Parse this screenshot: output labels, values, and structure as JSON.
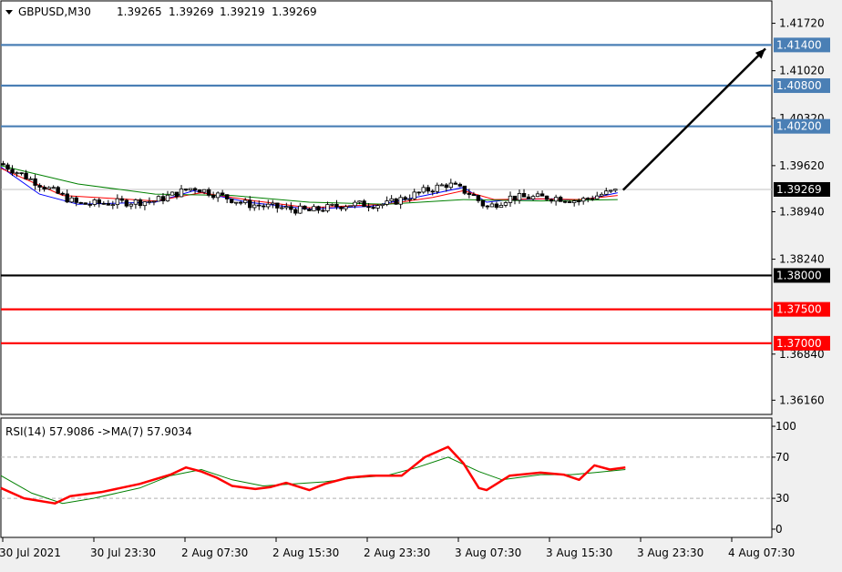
{
  "chart_data": {
    "type": "candlestick",
    "symbol_header": "GBPUSD,M30",
    "ohlc_header": [
      "1.39265",
      "1.39269",
      "1.39219",
      "1.39269"
    ],
    "price_ticks": [
      "1.41720",
      "1.41020",
      "1.40320",
      "1.39620",
      "1.38940",
      "1.38240",
      "1.36840",
      "1.36160"
    ],
    "price_range": [
      1.3595,
      1.4205
    ],
    "current_price": {
      "value": 1.39269,
      "label": "1.39269"
    },
    "resistance_levels": [
      {
        "value": 1.414,
        "label": "1.41400",
        "color": "#4a7fb5"
      },
      {
        "value": 1.408,
        "label": "1.40800",
        "color": "#4a7fb5"
      },
      {
        "value": 1.402,
        "label": "1.40200",
        "color": "#4a7fb5"
      }
    ],
    "support_levels": [
      {
        "value": 1.38,
        "label": "1.38000",
        "color": "#000000"
      },
      {
        "value": 1.375,
        "label": "1.37500",
        "color": "#ff0000"
      },
      {
        "value": 1.37,
        "label": "1.37000",
        "color": "#ff0000"
      }
    ],
    "price_path": [
      [
        0,
        1.3965
      ],
      [
        0.1,
        1.3905
      ],
      [
        0.2,
        1.391
      ],
      [
        0.25,
        1.393
      ],
      [
        0.32,
        1.3905
      ],
      [
        0.4,
        1.3895
      ],
      [
        0.45,
        1.3905
      ],
      [
        0.5,
        1.3905
      ],
      [
        0.55,
        1.3925
      ],
      [
        0.58,
        1.3935
      ],
      [
        0.61,
        1.392
      ],
      [
        0.63,
        1.39
      ],
      [
        0.66,
        1.3915
      ],
      [
        0.72,
        1.3915
      ],
      [
        0.75,
        1.391
      ],
      [
        0.78,
        1.392
      ],
      [
        0.8,
        1.3925
      ]
    ],
    "projection": {
      "from_value": 1.3926,
      "to_value": 1.414
    },
    "moving_averages": [
      {
        "color": "#0000ff",
        "points": [
          [
            0,
            1.396
          ],
          [
            0.05,
            1.392
          ],
          [
            0.1,
            1.3905
          ],
          [
            0.2,
            1.3908
          ],
          [
            0.25,
            1.3925
          ],
          [
            0.32,
            1.3908
          ],
          [
            0.4,
            1.3898
          ],
          [
            0.48,
            1.3902
          ],
          [
            0.55,
            1.3918
          ],
          [
            0.6,
            1.393
          ],
          [
            0.63,
            1.3908
          ],
          [
            0.66,
            1.3912
          ],
          [
            0.72,
            1.3913
          ],
          [
            0.75,
            1.391
          ],
          [
            0.8,
            1.3922
          ]
        ]
      },
      {
        "color": "#ff0000",
        "points": [
          [
            0,
            1.3958
          ],
          [
            0.08,
            1.3918
          ],
          [
            0.2,
            1.391
          ],
          [
            0.26,
            1.3922
          ],
          [
            0.33,
            1.391
          ],
          [
            0.4,
            1.39
          ],
          [
            0.5,
            1.3905
          ],
          [
            0.56,
            1.3915
          ],
          [
            0.6,
            1.3925
          ],
          [
            0.64,
            1.3912
          ],
          [
            0.7,
            1.3913
          ],
          [
            0.75,
            1.3912
          ],
          [
            0.8,
            1.3918
          ]
        ]
      },
      {
        "color": "#008000",
        "points": [
          [
            0,
            1.3962
          ],
          [
            0.1,
            1.3935
          ],
          [
            0.2,
            1.392
          ],
          [
            0.3,
            1.3918
          ],
          [
            0.4,
            1.3908
          ],
          [
            0.5,
            1.3905
          ],
          [
            0.6,
            1.3912
          ],
          [
            0.7,
            1.391
          ],
          [
            0.8,
            1.3912
          ]
        ]
      }
    ],
    "rsi": {
      "header": "RSI(14) 57.9086  ->MA(7) 57.9034",
      "ticks": [
        "100",
        "70",
        "30",
        "0"
      ],
      "levels": [
        70,
        30
      ],
      "range": [
        -8,
        108
      ],
      "rsi_color": "#ff0000",
      "ma_color": "#008000",
      "rsi_points": [
        [
          0,
          40
        ],
        [
          0.03,
          30
        ],
        [
          0.07,
          25
        ],
        [
          0.09,
          32
        ],
        [
          0.13,
          36
        ],
        [
          0.18,
          44
        ],
        [
          0.22,
          53
        ],
        [
          0.24,
          60
        ],
        [
          0.26,
          56
        ],
        [
          0.28,
          50
        ],
        [
          0.3,
          42
        ],
        [
          0.33,
          39
        ],
        [
          0.35,
          41
        ],
        [
          0.37,
          45
        ],
        [
          0.4,
          38
        ],
        [
          0.42,
          44
        ],
        [
          0.45,
          50
        ],
        [
          0.48,
          52
        ],
        [
          0.52,
          52
        ],
        [
          0.55,
          70
        ],
        [
          0.58,
          80
        ],
        [
          0.6,
          64
        ],
        [
          0.62,
          40
        ],
        [
          0.63,
          38
        ],
        [
          0.66,
          52
        ],
        [
          0.7,
          55
        ],
        [
          0.73,
          53
        ],
        [
          0.75,
          48
        ],
        [
          0.77,
          62
        ],
        [
          0.79,
          58
        ],
        [
          0.81,
          60
        ]
      ],
      "ma_points": [
        [
          0,
          52
        ],
        [
          0.04,
          35
        ],
        [
          0.08,
          25
        ],
        [
          0.12,
          30
        ],
        [
          0.18,
          40
        ],
        [
          0.22,
          52
        ],
        [
          0.26,
          58
        ],
        [
          0.3,
          48
        ],
        [
          0.34,
          42
        ],
        [
          0.38,
          44
        ],
        [
          0.42,
          46
        ],
        [
          0.46,
          50
        ],
        [
          0.5,
          52
        ],
        [
          0.54,
          60
        ],
        [
          0.58,
          70
        ],
        [
          0.62,
          56
        ],
        [
          0.65,
          48
        ],
        [
          0.7,
          53
        ],
        [
          0.74,
          53
        ],
        [
          0.77,
          55
        ],
        [
          0.81,
          58
        ]
      ]
    },
    "x_ticks": [
      "30 Jul 2021",
      "30 Jul 23:30",
      "2 Aug 07:30",
      "2 Aug 15:30",
      "2 Aug 23:30",
      "3 Aug 07:30",
      "3 Aug 15:30",
      "3 Aug 23:30",
      "4 Aug 07:30"
    ]
  }
}
